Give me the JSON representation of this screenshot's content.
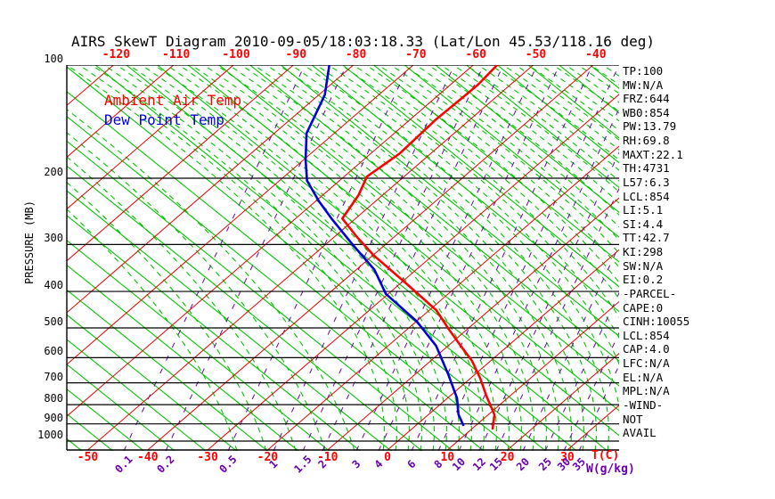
{
  "title": "AIRS SkewT Diagram 2010-09-05/18:03:18.33 (Lat/Lon 45.53/118.16 deg)",
  "legend": {
    "temp": "Ambient Air Temp",
    "dew": "Dew Point Temp"
  },
  "axes": {
    "pressure_label": "PRESSURE (MB)",
    "pressure_ticks": [
      100,
      200,
      300,
      400,
      500,
      600,
      700,
      800,
      900,
      1000
    ],
    "top_temp_ticks": [
      -120,
      -110,
      -100,
      -90,
      -80,
      -70,
      -60,
      -50,
      -40
    ],
    "bottom_temp_ticks": [
      -50,
      -40,
      -30,
      -20,
      -10,
      0,
      10,
      20,
      30
    ],
    "temp_unit": "T(C)",
    "mixing_unit": "W(g/kg)",
    "mixing_ticks": [
      "0.1",
      "0.2",
      "0.5",
      "1",
      "1.5",
      "2",
      "3",
      "4",
      "6",
      "8",
      "10",
      "12",
      "15",
      "20",
      "25",
      "30",
      "35"
    ]
  },
  "stats": [
    "TP:100",
    "MW:N/A",
    "FRZ:644",
    "WB0:854",
    "PW:13.79",
    "RH:69.8",
    "MAXT:22.1",
    "TH:4731",
    "L57:6.3",
    "LCL:854",
    "LI:5.1",
    "SI:4.4",
    "TT:42.7",
    "KI:298",
    "SW:N/A",
    "EI:0.2",
    "-PARCEL-",
    "CAPE:0",
    "CINH:10055",
    "LCL:854",
    "CAP:4.0",
    "LFC:N/A",
    "EL:N/A",
    "MPL:N/A",
    "-WIND-",
    "NOT",
    "AVAIL"
  ],
  "colors": {
    "isotherm": "#e80000",
    "dry_adiabat": "#00c400",
    "moist_adiabat": "#00c400",
    "mixing_ratio": "#6a00b0",
    "temp_curve": "#ff0000",
    "dew_curve": "#0000d8",
    "grid": "#000000",
    "red_label": "#ff0000",
    "purple_label": "#6a00b0"
  },
  "chart_data": {
    "type": "line",
    "title": "AIRS SkewT Diagram 2010-09-05/18:03:18.33 (Lat/Lon 45.53/118.16 deg)",
    "xlabel": "T(C)",
    "ylabel": "PRESSURE (MB)",
    "y_scale": "log",
    "ylim": [
      1000,
      100
    ],
    "x_bottom_ticks": [
      -50,
      -40,
      -30,
      -20,
      -10,
      0,
      10,
      20,
      30
    ],
    "x_top_ticks": [
      -120,
      -110,
      -100,
      -90,
      -80,
      -70,
      -60,
      -50,
      -40
    ],
    "mixing_ratio_lines_gkg": [
      0.1,
      0.2,
      0.5,
      1,
      1.5,
      2,
      3,
      4,
      6,
      8,
      10,
      12,
      15,
      20,
      25,
      30,
      35
    ],
    "isotherm_step_c": 10,
    "grid": "skew-t log-p",
    "legend_position": "top-left",
    "series": [
      {
        "name": "Ambient Air Temp",
        "color": "#ff0000",
        "units": [
          "mb",
          "C"
        ],
        "points": [
          [
            100,
            -56
          ],
          [
            113,
            -55.4
          ],
          [
            140,
            -55.7
          ],
          [
            172,
            -55.2
          ],
          [
            198,
            -56.2
          ],
          [
            222,
            -54
          ],
          [
            256,
            -52.2
          ],
          [
            285,
            -46.5
          ],
          [
            320,
            -40
          ],
          [
            375,
            -30
          ],
          [
            449,
            -18.8
          ],
          [
            500,
            -13.5
          ],
          [
            558,
            -7.9
          ],
          [
            612,
            -3.1
          ],
          [
            682,
            1.7
          ],
          [
            761,
            6.2
          ],
          [
            850,
            11
          ],
          [
            926,
            13.4
          ]
        ]
      },
      {
        "name": "Dew Point Temp",
        "color": "#0000d8",
        "units": [
          "mb",
          "C"
        ],
        "points": [
          [
            100,
            -84
          ],
          [
            120,
            -79
          ],
          [
            152,
            -74.6
          ],
          [
            179,
            -69.6
          ],
          [
            203,
            -65.4
          ],
          [
            230,
            -59.5
          ],
          [
            256,
            -54
          ],
          [
            300,
            -45.5
          ],
          [
            350,
            -37
          ],
          [
            406,
            -30.4
          ],
          [
            480,
            -20
          ],
          [
            558,
            -12
          ],
          [
            664,
            -4.5
          ],
          [
            769,
            1.6
          ],
          [
            850,
            5
          ],
          [
            906,
            7.8
          ]
        ]
      }
    ]
  }
}
